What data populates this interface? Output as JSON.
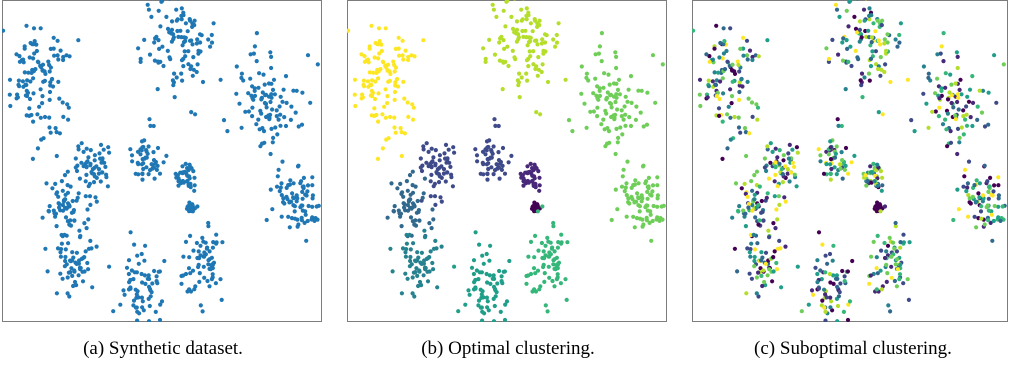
{
  "figure": {
    "panels": [
      {
        "label": "(a)",
        "caption": "Synthetic dataset.",
        "coloring": "uniform"
      },
      {
        "label": "(b)",
        "caption": "Optimal clustering.",
        "coloring": "by-cluster"
      },
      {
        "label": "(c)",
        "caption": "Suboptimal clustering.",
        "coloring": "mixed"
      }
    ],
    "colors": {
      "uniform": "#1f77b4",
      "palette": [
        "#440154",
        "#482878",
        "#3e4a89",
        "#31688e",
        "#26828e",
        "#1f9e89",
        "#35b779",
        "#6ece58",
        "#b5de2b",
        "#fde725"
      ]
    }
  },
  "chart_data": [
    {
      "type": "scatter",
      "title": "",
      "xlabel": "",
      "ylabel": "",
      "grid": false,
      "axes_ticks": false,
      "clusters": [
        {
          "id": 0,
          "center": [
            0.0,
            0.0
          ],
          "spread": 0.004,
          "n": 30
        },
        {
          "id": 1,
          "center": [
            -0.01,
            0.05
          ],
          "spread": 0.012,
          "n": 40
        },
        {
          "id": 2,
          "center": [
            -0.11,
            0.08
          ],
          "spread": 0.022,
          "n": 50
        },
        {
          "id": 3,
          "center": [
            -0.24,
            0.07
          ],
          "spread": 0.026,
          "n": 60
        },
        {
          "id": 4,
          "center": [
            -0.31,
            0.0
          ],
          "spread": 0.022,
          "n": 60
        },
        {
          "id": 5,
          "center": [
            -0.28,
            -0.09
          ],
          "spread": 0.025,
          "n": 60
        },
        {
          "id": 6,
          "center": [
            -0.12,
            -0.14
          ],
          "spread": 0.028,
          "n": 70
        },
        {
          "id": 7,
          "center": [
            0.03,
            -0.09
          ],
          "spread": 0.03,
          "n": 70
        },
        {
          "id": 8,
          "center": [
            0.26,
            0.01
          ],
          "spread": 0.028,
          "n": 80
        },
        {
          "id": 9,
          "center": [
            0.19,
            0.17
          ],
          "spread": 0.04,
          "n": 100
        },
        {
          "id": 10,
          "center": [
            -0.03,
            0.27
          ],
          "spread": 0.045,
          "n": 110
        },
        {
          "id": 11,
          "center": [
            -0.38,
            0.21
          ],
          "spread": 0.05,
          "n": 120
        }
      ],
      "xlim": [
        -0.45,
        0.31
      ],
      "ylim": [
        -0.18,
        0.33
      ]
    }
  ]
}
